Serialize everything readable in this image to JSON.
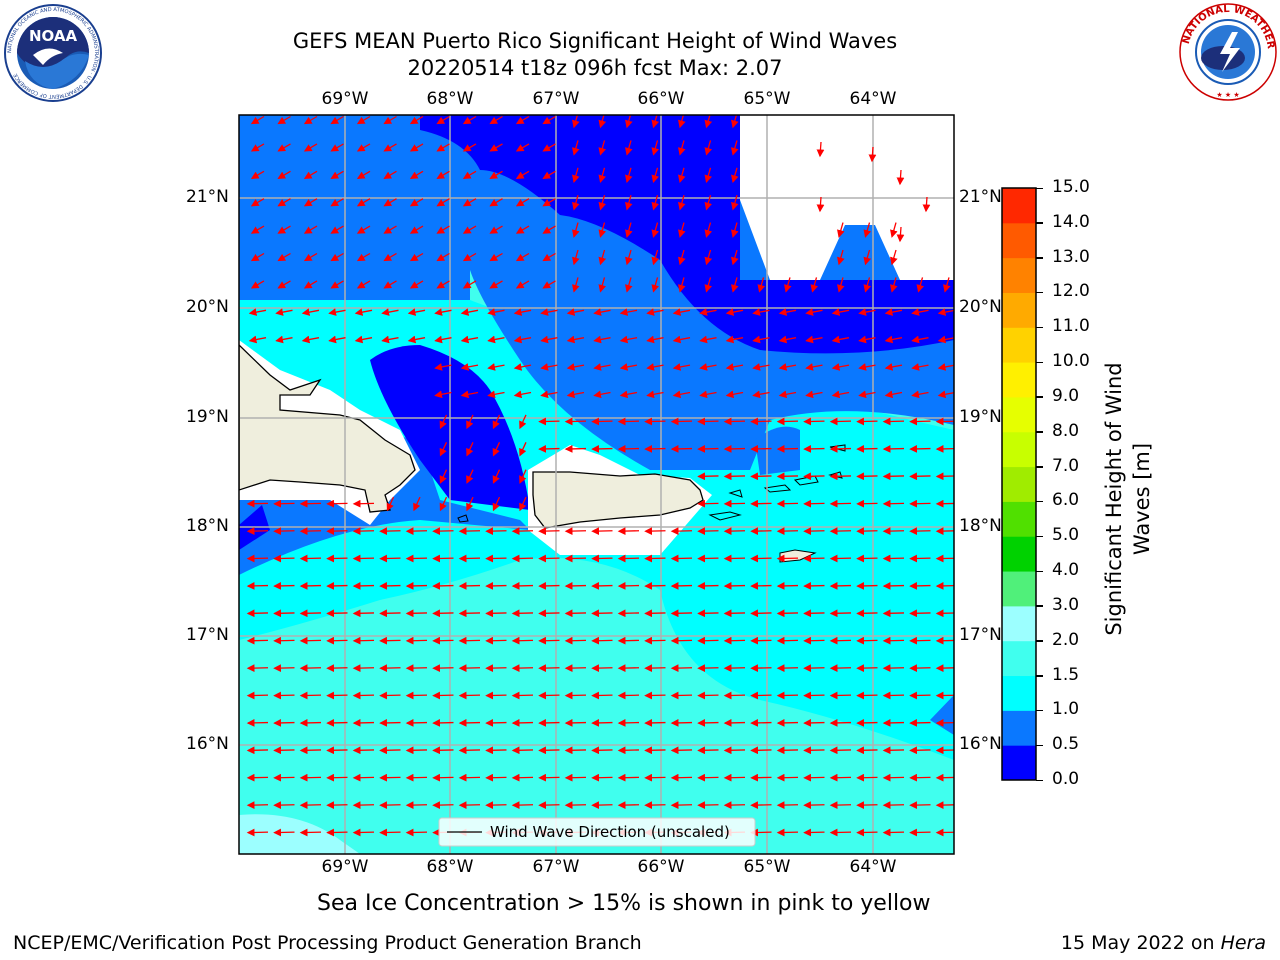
{
  "title": {
    "line1": "GEFS MEAN Puerto Rico Significant Height of Wind Waves",
    "line2": "20220514 t18z 096h fcst   Max: 2.07"
  },
  "logos": {
    "left": "NOAA",
    "left_ring_text": "NATIONAL OCEANIC AND ATMOSPHERIC ADMINISTRATION · U.S. DEPARTMENT OF COMMERCE",
    "right_ring_text": "NATIONAL WEATHER SERVICE"
  },
  "map": {
    "lon_labels": [
      "69°W",
      "68°W",
      "67°W",
      "66°W",
      "65°W",
      "64°W"
    ],
    "lat_labels": [
      "21°N",
      "20°N",
      "19°N",
      "18°N",
      "17°N",
      "16°N"
    ],
    "legend_label": "Wind Wave Direction (unscaled)",
    "colors": {
      "land": "#efeedd",
      "no_data": "#ffffff",
      "arrow": "#ff0000",
      "grid": "#b0b0b0"
    }
  },
  "colorbar": {
    "title": "Significant Height of Wind Waves [m]",
    "ticks": [
      "0.0",
      "0.5",
      "1.0",
      "1.5",
      "2.0",
      "3.0",
      "4.0",
      "5.0",
      "6.0",
      "7.0",
      "8.0",
      "9.0",
      "10.0",
      "11.0",
      "12.0",
      "13.0",
      "14.0",
      "15.0"
    ],
    "colors": [
      "#0000ff",
      "#0a78ff",
      "#00ffff",
      "#40ffee",
      "#9cffff",
      "#50f07a",
      "#00d200",
      "#50e000",
      "#a0ec00",
      "#c8ff00",
      "#e6ff00",
      "#fff000",
      "#ffd200",
      "#ffaa00",
      "#ff8200",
      "#ff5a00",
      "#ff2800"
    ]
  },
  "caption": "Sea Ice Concentration > 15% is shown in pink to yellow",
  "footer": {
    "left": "NCEP/EMC/Verification Post Processing Product Generation Branch",
    "right_prefix": "15 May 2022 on ",
    "right_host": "Hera"
  }
}
